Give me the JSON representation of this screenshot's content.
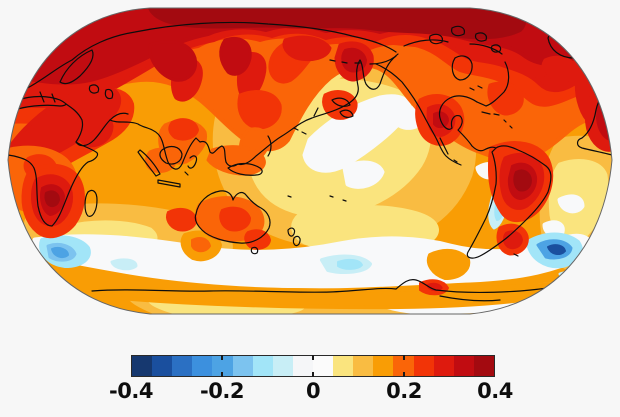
{
  "figure": {
    "kind": "global-temperature-anomaly-map",
    "background_color": "#f7f7f7",
    "map_outline_color": "#666666",
    "coastline_color": "#0d0d0d"
  },
  "colorbar": {
    "tick_labels": [
      "-0.4",
      "-0.2",
      "0",
      "0.2",
      "0.4"
    ],
    "tick_positions_pct": [
      0,
      25,
      50,
      75,
      100
    ],
    "segments": [
      "#16386f",
      "#1a4f9e",
      "#2b70c3",
      "#3c90de",
      "#4da3e4",
      "#7cc3ef",
      "#a2e5f8",
      "#c8eef6",
      "#f5f6f8",
      "#fbfbfb",
      "#fae47e",
      "#f9bc42",
      "#f99d05",
      "#fa6508",
      "#f23407",
      "#de1a0e",
      "#c10c11",
      "#a30a10"
    ],
    "border_color": "#2a2a2a",
    "tick_color": "#1a1a1a",
    "label_color": "#0e0e0e"
  },
  "map_palette": {
    "hottest": "#a30a10",
    "very_hot": "#c10c11",
    "hot": "#de1a0e",
    "warm_red": "#f23407",
    "orange_red": "#fa6508",
    "orange": "#f99d05",
    "light_orange": "#f9bc42",
    "pale_yellow": "#fae47e",
    "neutral_white": "#f8f9fa",
    "pale_cyan": "#c8eef6",
    "light_blue": "#a2e5f8",
    "mid_blue": "#7cc3ef",
    "blue": "#4da3e4",
    "deep_blue": "#2b70c3",
    "darkest_blue": "#1a4f9e"
  }
}
